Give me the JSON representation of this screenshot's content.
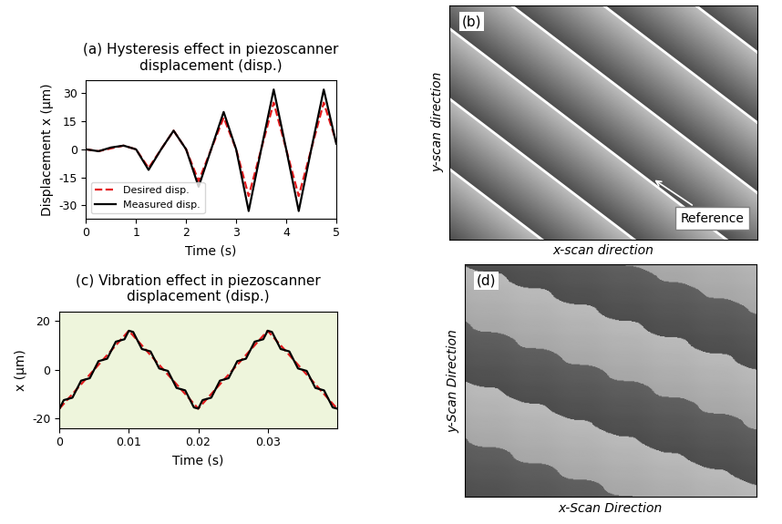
{
  "chart_data": [
    {
      "type": "line",
      "title": "(a) Hysteresis effect in piezoscanner\ndisplacement (disp.)",
      "x_label": "Time (s)",
      "y_label": "Displacement x (μm)",
      "xlim": [
        0,
        5
      ],
      "xticks": [
        0,
        1,
        2,
        3,
        4,
        5
      ],
      "ylim": [
        -37,
        37
      ],
      "yticks": [
        -30,
        -15,
        0,
        15,
        30
      ],
      "legend": "lower left",
      "series": [
        {
          "name": "Desired disp.",
          "color": "#e41a1c",
          "line_style": "dashed",
          "x": [
            0,
            0.25,
            0.5,
            0.75,
            1,
            1.25,
            1.5,
            1.75,
            2,
            2.25,
            2.5,
            2.75,
            3,
            3.25,
            3.5,
            3.75,
            4,
            4.25,
            4.5,
            4.75,
            5
          ],
          "values": [
            0,
            -1,
            0.5,
            2,
            0,
            -10,
            0,
            10,
            0,
            -17,
            0,
            17,
            0,
            -25,
            0,
            25,
            0,
            -25,
            0,
            25,
            4
          ]
        },
        {
          "name": "Measured disp.",
          "color": "#000000",
          "line_style": "solid",
          "x": [
            0,
            0.25,
            0.5,
            0.75,
            1,
            1.25,
            1.5,
            1.75,
            2,
            2.25,
            2.5,
            2.75,
            3,
            3.25,
            3.5,
            3.75,
            4,
            4.25,
            4.5,
            4.75,
            5
          ],
          "values": [
            0,
            -1,
            1,
            2,
            0,
            -11,
            0,
            10,
            0,
            -20,
            0,
            20,
            0,
            -33,
            0,
            32,
            0,
            -33,
            0,
            32,
            3
          ]
        }
      ]
    },
    {
      "type": "image",
      "panel": "(b)",
      "x_label": "x-scan direction",
      "y_label": "y-scan direction",
      "annotation": "Reference"
    },
    {
      "type": "line",
      "title": "(c) Vibration effect in piezoscanner\ndisplacement (disp.)",
      "x_label": "Time (s)",
      "y_label": "x (μm)",
      "xlim": [
        0,
        0.04
      ],
      "xticks": [
        0,
        0.01,
        0.02,
        0.03
      ],
      "ylim": [
        -24,
        24
      ],
      "yticks": [
        -20,
        0,
        20
      ],
      "series": [
        {
          "color": "#e41a1c",
          "line_style": "dashed",
          "x": [
            0,
            0.01,
            0.02,
            0.03,
            0.04
          ],
          "values": [
            -16,
            16,
            -16,
            16,
            -16
          ]
        },
        {
          "color": "#000000",
          "line_style": "solid",
          "x": [
            0,
            0.000625,
            0.00125,
            0.001875,
            0.0025,
            0.003125,
            0.00375,
            0.004375,
            0.005,
            0.005625,
            0.00625,
            0.006875,
            0.0075,
            0.008125,
            0.00875,
            0.009375,
            0.01,
            0.010625,
            0.01125,
            0.011875,
            0.0125,
            0.013125,
            0.01375,
            0.014375,
            0.015,
            0.015625,
            0.01625,
            0.016875,
            0.0175,
            0.018125,
            0.01875,
            0.019375,
            0.02,
            0.020625,
            0.02125,
            0.021875,
            0.0225,
            0.023125,
            0.02375,
            0.024375,
            0.025,
            0.025625,
            0.02625,
            0.026875,
            0.0275,
            0.028125,
            0.02875,
            0.029375,
            0.03,
            0.030625,
            0.03125,
            0.031875,
            0.0325,
            0.033125,
            0.03375,
            0.034375,
            0.035,
            0.035625,
            0.03625,
            0.036875,
            0.0375,
            0.038125,
            0.03875,
            0.039375,
            0.04
          ],
          "values": [
            -16,
            -12.5,
            -12,
            -11.5,
            -8,
            -4.5,
            -4,
            -3.5,
            0,
            3.5,
            4,
            4.5,
            8,
            11.5,
            12,
            12.5,
            16,
            15.5,
            12,
            8.5,
            8,
            7.5,
            4,
            0.5,
            0,
            -0.5,
            -4,
            -7.5,
            -8,
            -8.5,
            -12,
            -15.5,
            -16,
            -12.5,
            -12,
            -11.5,
            -8,
            -4.5,
            -4,
            -3.5,
            0,
            3.5,
            4,
            4.5,
            8,
            11.5,
            12,
            12.5,
            16,
            15.5,
            12,
            8.5,
            8,
            7.5,
            4,
            0.5,
            0,
            -0.5,
            -4,
            -7.5,
            -8,
            -8.5,
            -12,
            -15.5,
            -16
          ]
        }
      ]
    },
    {
      "type": "image",
      "panel": "(d)",
      "x_label": "x-Scan Direction",
      "y_label": "y-Scan Direction"
    }
  ]
}
